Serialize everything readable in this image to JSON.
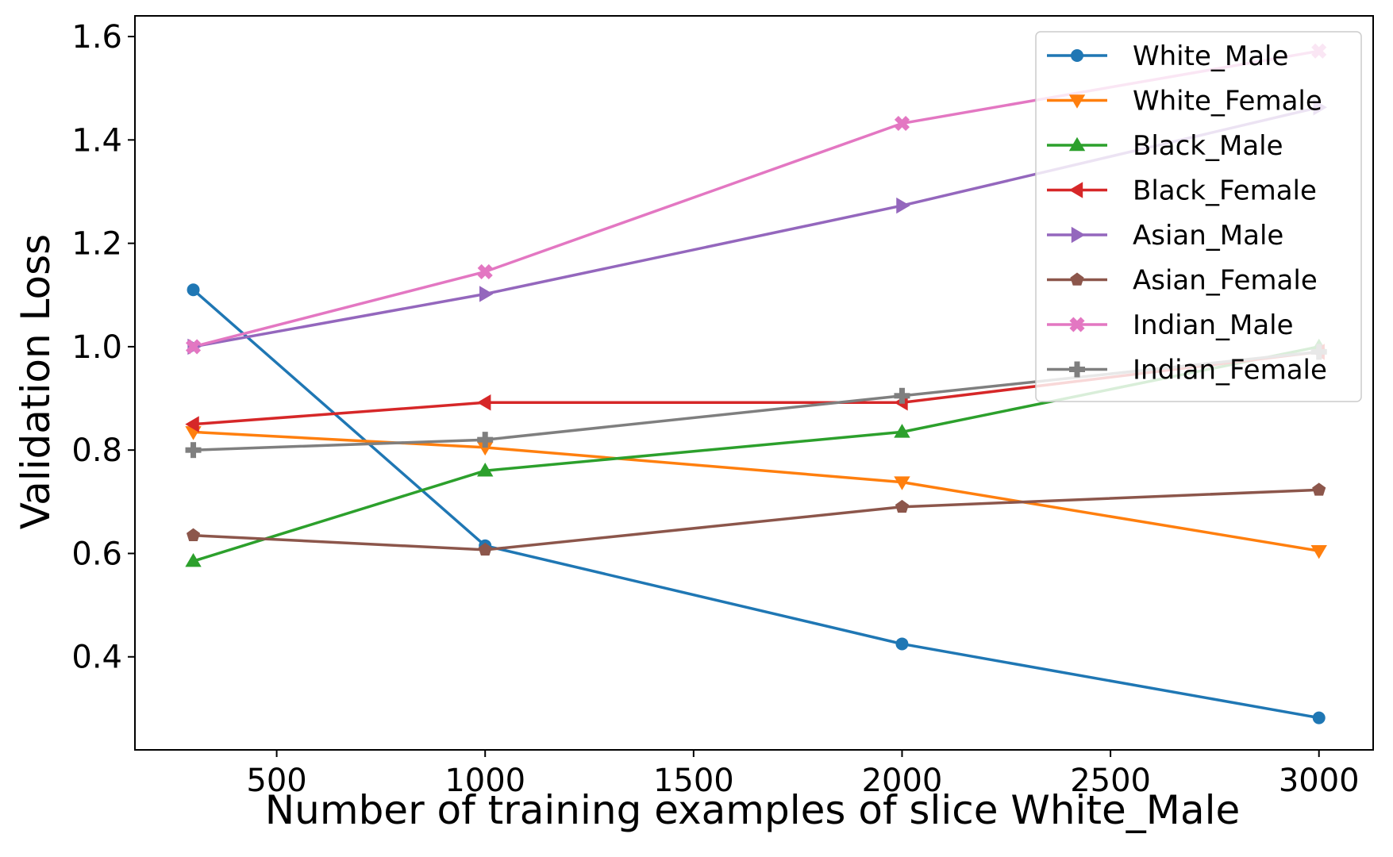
{
  "chart_data": {
    "type": "line",
    "xlabel": "Number of training examples of slice White_Male",
    "ylabel": "Validation Loss",
    "x": [
      300,
      1000,
      2000,
      3000
    ],
    "xlim": [
      160,
      3130
    ],
    "ylim": [
      0.22,
      1.64
    ],
    "xticks": [
      500,
      1000,
      1500,
      2000,
      2500,
      3000
    ],
    "xtick_labels": [
      "500",
      "1000",
      "1500",
      "2000",
      "2500",
      "3000"
    ],
    "yticks": [
      0.4,
      0.6,
      0.8,
      1.0,
      1.2,
      1.4,
      1.6
    ],
    "ytick_labels": [
      "0.4",
      "0.6",
      "0.8",
      "1.0",
      "1.2",
      "1.4",
      "1.6"
    ],
    "grid": false,
    "legend_position": "top-right",
    "series": [
      {
        "name": "White_Male",
        "color": "#1f77b4",
        "marker": "circle",
        "values": [
          1.11,
          0.615,
          0.425,
          0.282
        ]
      },
      {
        "name": "White_Female",
        "color": "#ff7f0e",
        "marker": "triangle-down",
        "values": [
          0.835,
          0.805,
          0.738,
          0.605
        ]
      },
      {
        "name": "Black_Male",
        "color": "#2ca02c",
        "marker": "triangle-up",
        "values": [
          0.585,
          0.76,
          0.835,
          1.0
        ]
      },
      {
        "name": "Black_Female",
        "color": "#d62728",
        "marker": "triangle-left",
        "values": [
          0.85,
          0.892,
          0.892,
          0.99
        ]
      },
      {
        "name": "Asian_Male",
        "color": "#9467bd",
        "marker": "triangle-right",
        "values": [
          1.0,
          1.102,
          1.273,
          1.463
        ]
      },
      {
        "name": "Asian_Female",
        "color": "#8c564b",
        "marker": "pentagon",
        "values": [
          0.635,
          0.607,
          0.69,
          0.723
        ]
      },
      {
        "name": "Indian_Male",
        "color": "#e377c2",
        "marker": "x-filled",
        "values": [
          1.0,
          1.145,
          1.432,
          1.572
        ]
      },
      {
        "name": "Indian_Female",
        "color": "#7f7f7f",
        "marker": "plus-filled",
        "values": [
          0.8,
          0.82,
          0.905,
          0.99
        ]
      }
    ]
  }
}
